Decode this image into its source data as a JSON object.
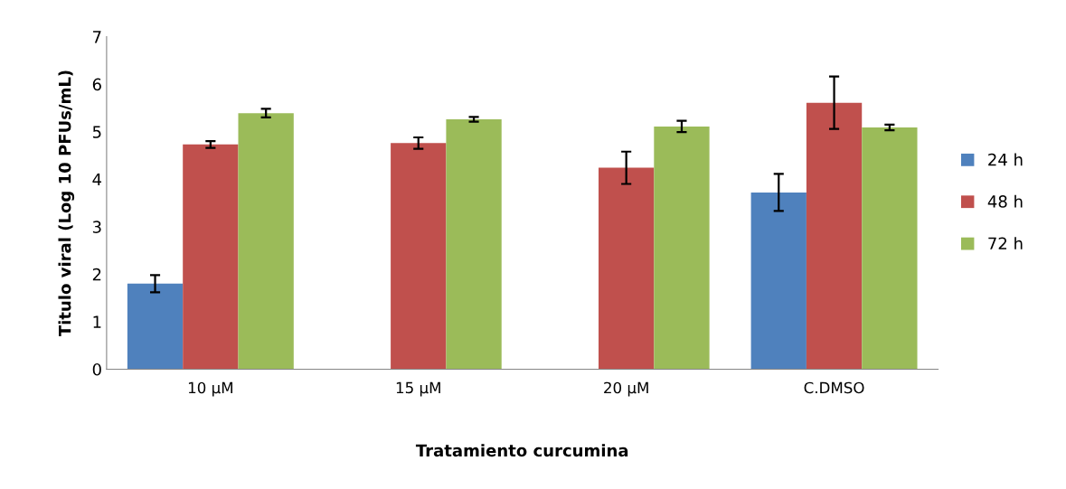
{
  "chart_data": {
    "type": "bar",
    "xlabel": "Tratamiento curcumina",
    "ylabel": "Titulo viral (Log 10 PFUs/mL)",
    "categories": [
      "10 µM",
      "15 µM",
      "20 µM",
      "C.DMSO"
    ],
    "series": [
      {
        "name": "24 h",
        "color": "#4f81bd",
        "values": [
          1.8,
          null,
          null,
          3.72
        ],
        "errors": [
          0.18,
          null,
          null,
          0.39
        ]
      },
      {
        "name": "48 h",
        "color": "#c0504d",
        "values": [
          4.73,
          4.76,
          4.24,
          5.61
        ],
        "errors": [
          0.07,
          0.12,
          0.34,
          0.55
        ]
      },
      {
        "name": "72 h",
        "color": "#9bbb59",
        "values": [
          5.39,
          5.26,
          5.11,
          5.09
        ],
        "errors": [
          0.09,
          0.05,
          0.12,
          0.06
        ]
      }
    ],
    "ylim": [
      0,
      7
    ],
    "yticks": [
      0,
      1,
      2,
      3,
      4,
      5,
      6,
      7
    ],
    "grid": false,
    "legend": "right"
  }
}
